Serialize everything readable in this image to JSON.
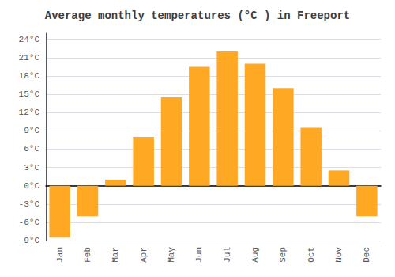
{
  "chart_data": {
    "type": "bar",
    "title": "Average monthly temperatures (°C ) in Freeport",
    "categories": [
      "Jan",
      "Feb",
      "Mar",
      "Apr",
      "May",
      "Jun",
      "Jul",
      "Aug",
      "Sep",
      "Oct",
      "Nov",
      "Dec"
    ],
    "values": [
      -8.5,
      -5.0,
      1.0,
      8.0,
      14.5,
      19.5,
      22.0,
      20.0,
      16.0,
      9.5,
      2.5,
      -5.0
    ],
    "color": "#FFA824",
    "ylim": [
      -9,
      25
    ],
    "yticks": [
      {
        "value": -9,
        "label": "-9°C"
      },
      {
        "value": -6,
        "label": "-6°C"
      },
      {
        "value": -3,
        "label": "-3°C"
      },
      {
        "value": 0,
        "label": "0°C"
      },
      {
        "value": 3,
        "label": "3°C"
      },
      {
        "value": 6,
        "label": "6°C"
      },
      {
        "value": 9,
        "label": "9°C"
      },
      {
        "value": 12,
        "label": "12°C"
      },
      {
        "value": 15,
        "label": "15°C"
      },
      {
        "value": 18,
        "label": "18°C"
      },
      {
        "value": 21,
        "label": "21°C"
      },
      {
        "value": 24,
        "label": "24°C"
      }
    ],
    "grid": true
  }
}
